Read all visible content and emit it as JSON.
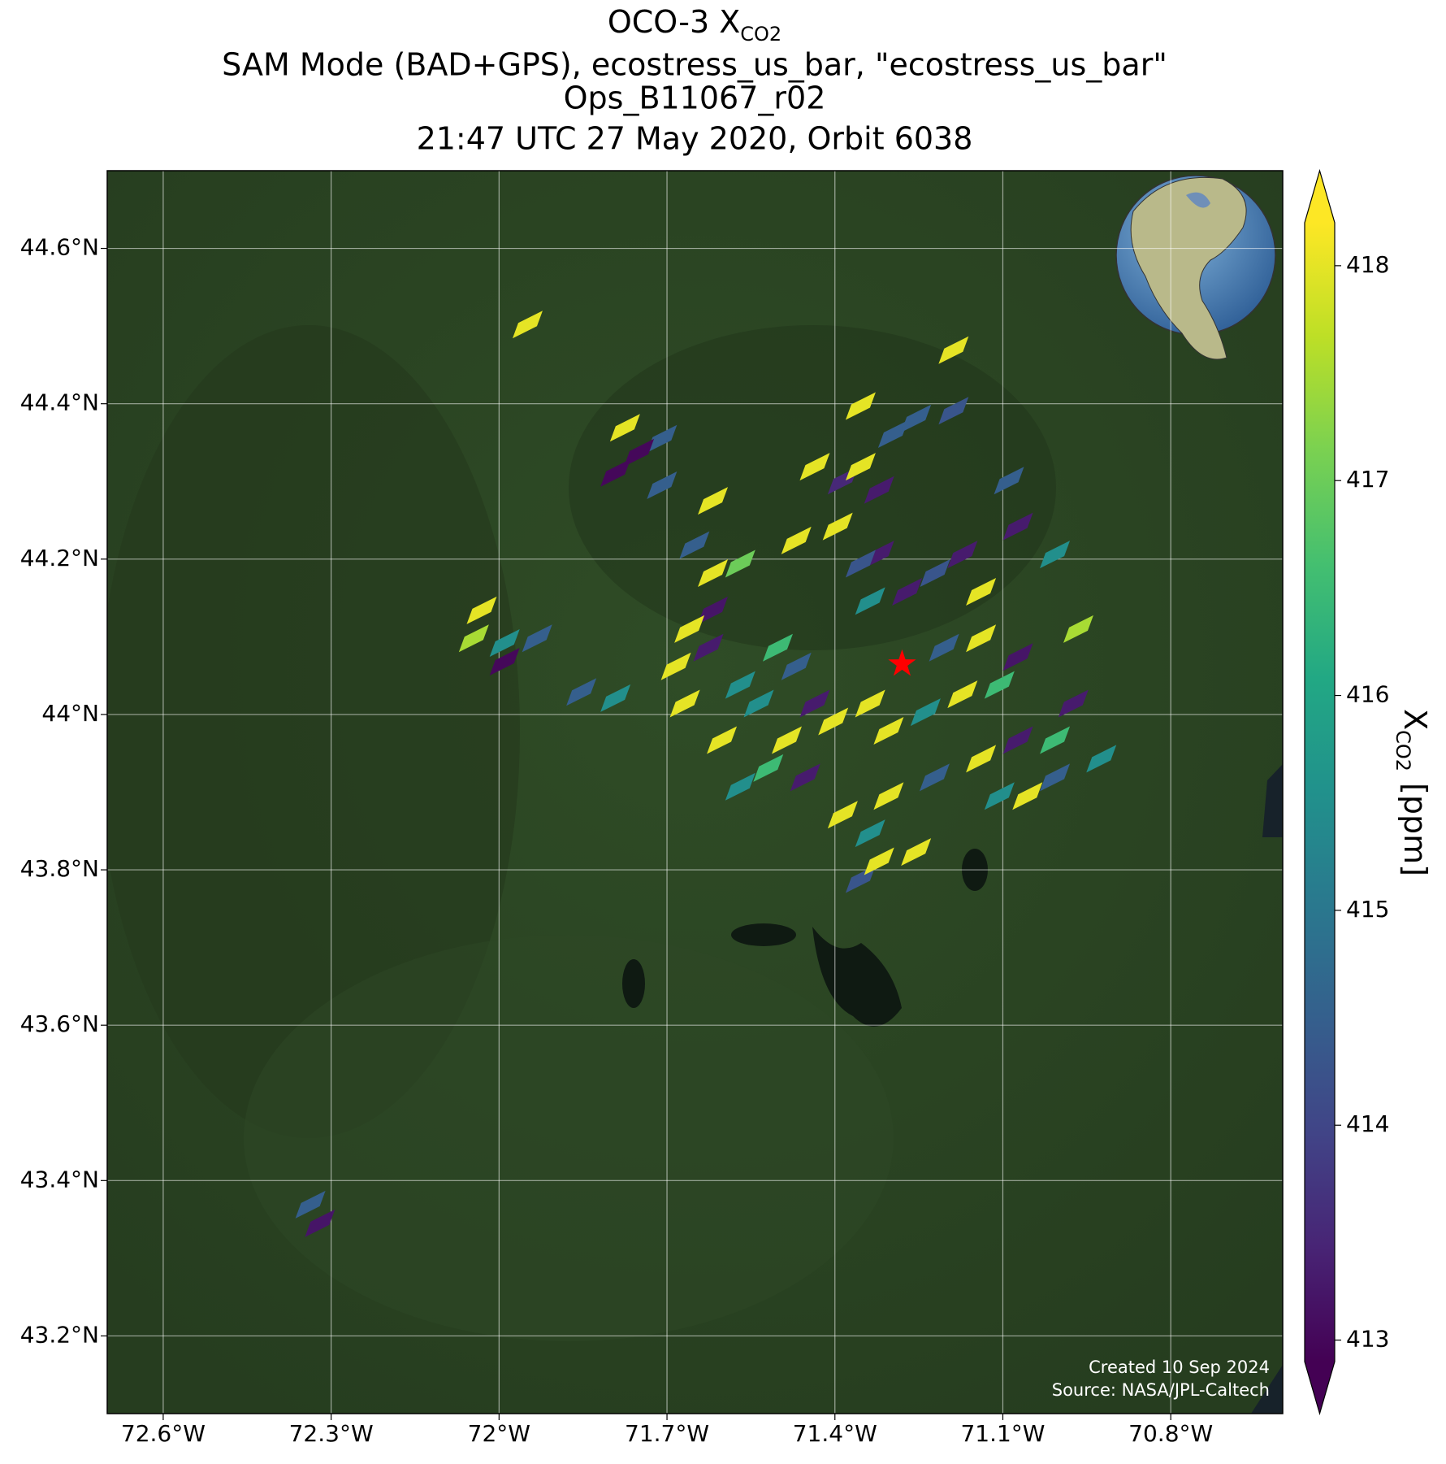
{
  "chart_data": {
    "type": "map",
    "title_lines": [
      "OCO-3 X",
      "SAM Mode (BAD+GPS), ecostress_us_bar, \"ecostress_us_bar\"",
      "Ops_B11067_r02",
      "21:47 UTC 27 May 2020, Orbit 6038"
    ],
    "title_sub": "CO2",
    "colorbar_label": {
      "main": "X",
      "sub": "CO2",
      "unit": "[ppm]"
    },
    "annotations": [
      "Created 10 Sep 2024",
      "Source: NASA/JPL-Caltech"
    ],
    "xlim": [
      -72.7,
      -70.6
    ],
    "ylim": [
      43.1,
      44.7
    ],
    "xticks": [
      {
        "value": -72.6,
        "label": "72.6°W"
      },
      {
        "value": -72.3,
        "label": "72.3°W"
      },
      {
        "value": -72.0,
        "label": "72°W"
      },
      {
        "value": -71.7,
        "label": "71.7°W"
      },
      {
        "value": -71.4,
        "label": "71.4°W"
      },
      {
        "value": -71.1,
        "label": "71.1°W"
      },
      {
        "value": -70.8,
        "label": "70.8°W"
      }
    ],
    "yticks": [
      {
        "value": 43.2,
        "label": "43.2°N"
      },
      {
        "value": 43.4,
        "label": "43.4°N"
      },
      {
        "value": 43.6,
        "label": "43.6°N"
      },
      {
        "value": 43.8,
        "label": "43.8°N"
      },
      {
        "value": 44.0,
        "label": "44°N"
      },
      {
        "value": 44.2,
        "label": "44.2°N"
      },
      {
        "value": 44.4,
        "label": "44.4°N"
      },
      {
        "value": 44.6,
        "label": "44.6°N"
      }
    ],
    "grid": true,
    "colormap": "viridis",
    "clim": [
      412.9,
      418.2
    ],
    "cticks": [
      413,
      414,
      415,
      416,
      417,
      418
    ],
    "target": {
      "lon": -71.28,
      "lat": 44.065,
      "color": "#ff0000"
    },
    "x": [
      -71.949,
      -71.188,
      -71.354,
      -71.775,
      -71.709,
      -71.75,
      -71.792,
      -71.709,
      -71.618,
      -71.436,
      -71.386,
      -71.354,
      -71.321,
      -71.296,
      -71.255,
      -71.188,
      -71.395,
      -71.469,
      -71.651,
      -71.618,
      -71.569,
      -71.618,
      -71.66,
      -72.031,
      -72.045,
      -71.99,
      -71.932,
      -71.99,
      -71.853,
      -71.792,
      -71.684,
      -71.668,
      -71.626,
      -71.569,
      -71.502,
      -71.469,
      -71.602,
      -71.536,
      -71.486,
      -71.436,
      -71.403,
      -71.337,
      -71.304,
      -71.238,
      -71.172,
      -71.106,
      -71.073,
      -71.139,
      -71.205,
      -71.337,
      -71.271,
      -71.221,
      -71.172,
      -71.139,
      -71.089,
      -71.073,
      -71.007,
      -70.965,
      -71.321,
      -71.354,
      -71.569,
      -71.519,
      -71.453,
      -71.386,
      -71.337,
      -71.304,
      -71.255,
      -71.222,
      -71.354,
      -71.321,
      -71.139,
      -71.106,
      -71.073,
      -71.056,
      -71.007,
      -70.974,
      -70.924,
      -71.007,
      -72.337,
      -72.32
    ],
    "y": [
      44.502,
      44.469,
      44.397,
      44.369,
      44.355,
      44.337,
      44.311,
      44.295,
      44.275,
      44.319,
      44.301,
      44.319,
      44.289,
      44.361,
      44.381,
      44.391,
      44.242,
      44.224,
      44.218,
      44.182,
      44.194,
      44.134,
      44.11,
      44.134,
      44.098,
      44.092,
      44.098,
      44.068,
      44.029,
      44.021,
      44.062,
      44.014,
      44.086,
      44.038,
      44.086,
      44.062,
      43.967,
      44.014,
      43.967,
      44.014,
      43.991,
      44.014,
      43.979,
      44.003,
      44.026,
      44.038,
      44.074,
      44.098,
      44.086,
      44.146,
      44.158,
      44.182,
      44.206,
      44.158,
      44.301,
      44.242,
      44.206,
      44.11,
      44.206,
      44.194,
      43.907,
      43.931,
      43.919,
      43.871,
      43.847,
      43.895,
      43.823,
      43.919,
      43.788,
      43.811,
      43.943,
      43.895,
      43.967,
      43.895,
      43.967,
      44.014,
      43.943,
      43.919,
      43.369,
      43.345
    ],
    "values": [
      418,
      418,
      418,
      418,
      414.5,
      413,
      413,
      414.5,
      418,
      418,
      413.5,
      418,
      413.3,
      414.5,
      414.5,
      414.3,
      418,
      418,
      414.5,
      418,
      417,
      413.2,
      418,
      418,
      417.5,
      415.5,
      414.5,
      413,
      414.5,
      415.5,
      418,
      418,
      413.3,
      415.5,
      416.5,
      414.5,
      418,
      415.5,
      418,
      413.3,
      418,
      418,
      418,
      415.5,
      418,
      416.5,
      413.2,
      418,
      414.5,
      415.5,
      413.3,
      414.3,
      413.3,
      418,
      414.5,
      413.3,
      415.5,
      417.5,
      413.3,
      414.3,
      415.5,
      416.5,
      413.3,
      418,
      415.5,
      418,
      418,
      414.5,
      414.3,
      418,
      418,
      415.5,
      413.3,
      418,
      416.5,
      413.3,
      415.5,
      414.5,
      414.5,
      413.2
    ]
  }
}
